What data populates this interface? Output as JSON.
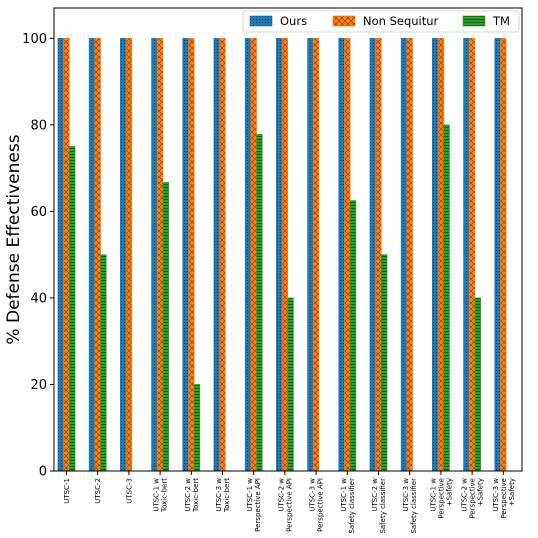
{
  "chart_data": {
    "type": "bar",
    "ylabel": "% Defense Effectiveness",
    "xlabel": "",
    "ylim": [
      0,
      107
    ],
    "yticks": [
      0,
      20,
      40,
      60,
      80,
      100
    ],
    "grid": false,
    "legend_position": "top-right",
    "categories": [
      "UTSC-1",
      "UTSC-2",
      "UTSC-3",
      "UTSC-1 w\nToxic-bert",
      "UTSC-2 w\nToxic-bert",
      "UTSC-3 w\nToxic-bert",
      "UTSC-1 w\nPerspective API",
      "UTSC-2 w\nPerspective API",
      "UTSC-3 w\nPerspective API",
      "UTSC-1 w\nSafety classifier",
      "UTSC-2 w\nSafety classifier",
      "UTSC-3 w\nSafety classifier",
      "UTSC-1 w\nPerspective\n+Safety",
      "UTSC-2 w\nPerspective\n+Safety",
      "UTSC-3 w\nPerspective\n+Safety"
    ],
    "series": [
      {
        "name": "Ours",
        "color": "#1f77b4",
        "pattern": "dots",
        "values": [
          100,
          100,
          100,
          100,
          100,
          100,
          100,
          100,
          100,
          100,
          100,
          100,
          100,
          100,
          100
        ]
      },
      {
        "name": "Non Sequitur",
        "color": "#ff7f0e",
        "pattern": "crosshatch",
        "values": [
          100,
          100,
          100,
          100,
          100,
          100,
          100,
          100,
          100,
          100,
          100,
          100,
          100,
          100,
          100
        ]
      },
      {
        "name": "TM",
        "color": "#2ca02c",
        "pattern": "horizontal-lines",
        "values": [
          75,
          50,
          0,
          66.7,
          20,
          0,
          77.8,
          40,
          0,
          62.5,
          50,
          0,
          80,
          40,
          0
        ]
      }
    ]
  }
}
